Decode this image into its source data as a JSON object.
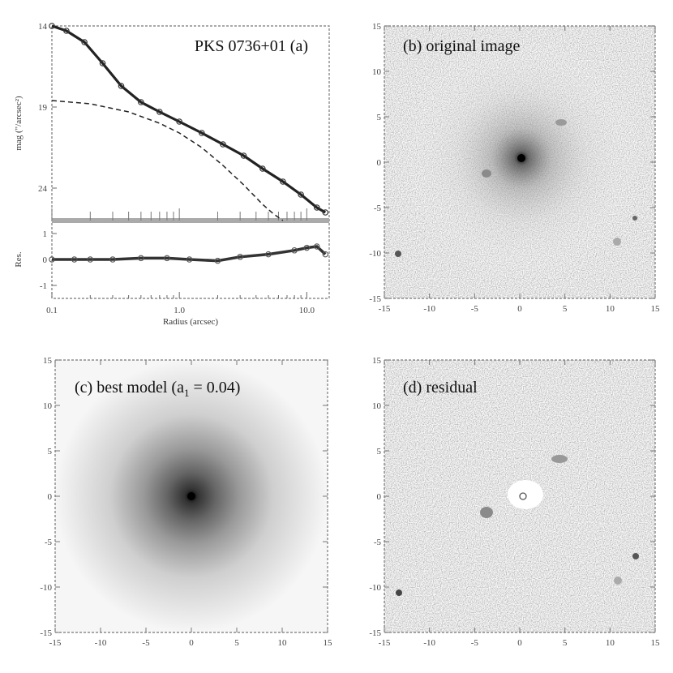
{
  "figure": {
    "panel_a": {
      "title": "PKS 0736+01 (a)",
      "ylabel": "mag (\"/arcsec²)",
      "reslabel": "Res.",
      "xlabel": "Radius (arcsec)",
      "xticks": [
        "0.1",
        "1.0",
        "10.0"
      ],
      "yticks": [
        "14",
        "19",
        "24"
      ],
      "resticks": [
        "1",
        "0",
        "-1"
      ]
    },
    "panel_b": {
      "title": "(b) original image"
    },
    "panel_c": {
      "title": "(c) best model (a",
      "title_sub": "1",
      "title_tail": " = 0.04)"
    },
    "panel_d": {
      "title": "(d) residual"
    },
    "image_ticks": [
      "15",
      "10",
      "5",
      "0",
      "-5",
      "-10",
      "-15"
    ],
    "image_xticks": [
      "-15",
      "-10",
      "-5",
      "0",
      "5",
      "10",
      "15"
    ]
  },
  "chart_data": [
    {
      "type": "line",
      "title": "PKS 0736+01 (a)",
      "xlabel": "Radius (arcsec)",
      "ylabel": "mag (\"/arcsec²)",
      "xscale": "log",
      "xlim": [
        0.1,
        15
      ],
      "ylim": [
        26,
        14
      ],
      "series": [
        {
          "x": [
            0.1,
            0.13,
            0.18,
            0.25,
            0.35,
            0.5,
            0.7,
            1.0,
            1.5,
            2.2,
            3.2,
            4.5,
            6.5,
            9.0,
            12.0,
            14.0
          ],
          "y": [
            14.0,
            14.3,
            15.0,
            16.3,
            17.7,
            18.7,
            19.3,
            19.9,
            20.6,
            21.3,
            22.0,
            22.8,
            23.6,
            24.4,
            25.2,
            25.5
          ]
        },
        {
          "x": [
            0.1,
            0.2,
            0.4,
            0.7,
            1.0,
            1.5,
            2.2,
            3.2,
            4.5,
            5.5,
            6.5
          ],
          "y": [
            18.6,
            18.8,
            19.3,
            20.0,
            20.6,
            21.5,
            22.6,
            23.8,
            25.0,
            25.6,
            26.0
          ]
        }
      ]
    },
    {
      "type": "scatter",
      "xlabel": "Radius (arcsec)",
      "ylabel": "Res.",
      "xscale": "log",
      "xlim": [
        0.1,
        15
      ],
      "ylim": [
        -1.5,
        1.5
      ],
      "series": [
        {
          "x": [
            0.1,
            0.15,
            0.2,
            0.3,
            0.5,
            0.8,
            1.2,
            2.0,
            3.0,
            5.0,
            8.0,
            10.0,
            12.0,
            14.0
          ],
          "y": [
            0.0,
            0.0,
            0.0,
            0.0,
            0.05,
            0.05,
            0.0,
            -0.05,
            0.1,
            0.2,
            0.35,
            0.45,
            0.5,
            0.2
          ]
        }
      ]
    },
    {
      "type": "heatmap",
      "title": "(b) original image",
      "xlim": [
        -15,
        15
      ],
      "ylim": [
        -15,
        15
      ]
    },
    {
      "type": "heatmap",
      "title": "(c) best model (a1 = 0.04)",
      "xlim": [
        -15,
        15
      ],
      "ylim": [
        -15,
        15
      ]
    },
    {
      "type": "heatmap",
      "title": "(d) residual",
      "xlim": [
        -15,
        15
      ],
      "ylim": [
        -15,
        15
      ]
    }
  ]
}
